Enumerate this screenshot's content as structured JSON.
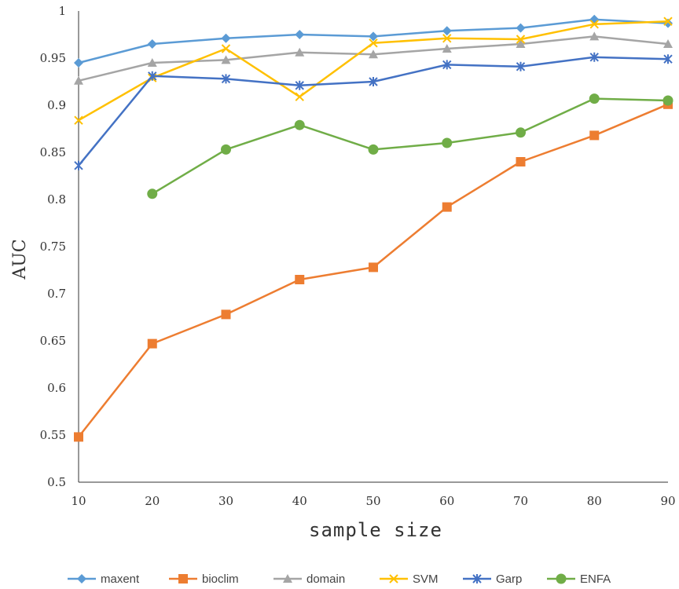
{
  "chart_data": {
    "type": "line",
    "title": "",
    "xlabel": "sample size",
    "ylabel": "AUC",
    "x": [
      10,
      20,
      30,
      40,
      50,
      60,
      70,
      80,
      90
    ],
    "xlim": [
      10,
      90
    ],
    "ylim": [
      0.5,
      1
    ],
    "x_ticks": [
      10,
      20,
      30,
      40,
      50,
      60,
      70,
      80,
      90
    ],
    "y_ticks": [
      0.5,
      0.55,
      0.6,
      0.65,
      0.7,
      0.75,
      0.8,
      0.85,
      0.9,
      0.95,
      1
    ],
    "y_tick_labels": [
      "0.5",
      "0.55",
      "0.6",
      "0.65",
      "0.7",
      "0.75",
      "0.8",
      "0.85",
      "0.9",
      "0.95",
      "1"
    ],
    "grid": false,
    "legend_position": "bottom",
    "series": [
      {
        "name": "maxent",
        "color": "#5B9BD5",
        "marker": "diamond",
        "values": [
          0.945,
          0.965,
          0.971,
          0.975,
          0.973,
          0.979,
          0.982,
          0.991,
          0.987
        ]
      },
      {
        "name": "bioclim",
        "color": "#ED7D31",
        "marker": "square",
        "values": [
          0.548,
          0.647,
          0.678,
          0.715,
          0.728,
          0.792,
          0.84,
          0.868,
          0.901
        ]
      },
      {
        "name": "domain",
        "color": "#A5A5A5",
        "marker": "triangle",
        "values": [
          0.926,
          0.945,
          0.948,
          0.956,
          0.954,
          0.96,
          0.965,
          0.973,
          0.965
        ]
      },
      {
        "name": "SVM",
        "color": "#FFC000",
        "marker": "x",
        "values": [
          0.884,
          0.929,
          0.96,
          0.909,
          0.966,
          0.971,
          0.97,
          0.986,
          0.989
        ]
      },
      {
        "name": "Garp",
        "color": "#4472C4",
        "marker": "star",
        "values": [
          0.836,
          0.931,
          0.928,
          0.921,
          0.925,
          0.943,
          0.941,
          0.951,
          0.949
        ]
      },
      {
        "name": "ENFA",
        "color": "#70AD47",
        "marker": "circle",
        "values": [
          null,
          0.806,
          0.853,
          0.879,
          0.853,
          0.86,
          0.871,
          0.907,
          0.905
        ]
      }
    ]
  }
}
